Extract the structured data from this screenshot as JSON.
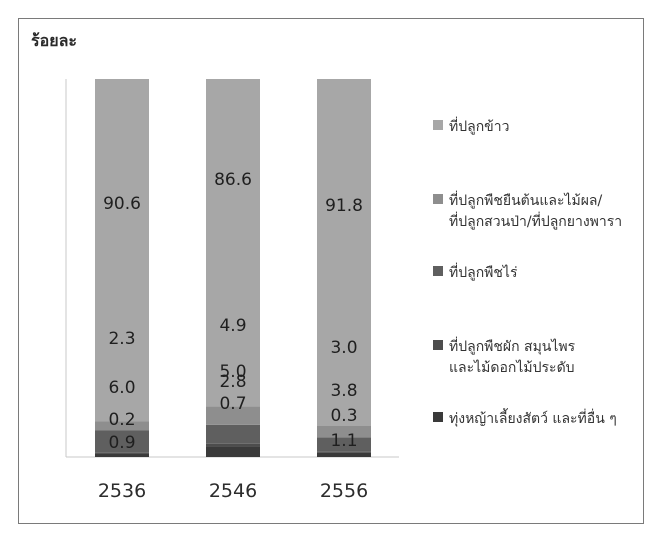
{
  "chart_data": {
    "type": "bar",
    "stacked": true,
    "ylabel": "ร้อยละ",
    "categories": [
      "2536",
      "2546",
      "2556"
    ],
    "series": [
      {
        "name": "ทุ่งหญ้าเลี้ยงสัตว์ และที่อื่น ๆ",
        "values": [
          0.9,
          2.8,
          1.1
        ],
        "labels": [
          "0.9",
          "2.8",
          "1.1"
        ],
        "color": "#3a3a3a"
      },
      {
        "name": "ที่ปลูกพืชผัก สมุนไพร\nและไม้ดอกไม้ประดับ",
        "values": [
          0.2,
          0.7,
          0.3
        ],
        "labels": [
          "0.2",
          "0.7",
          "0.3"
        ],
        "color": "#4d4d4d"
      },
      {
        "name": "ที่ปลูกพืชไร่",
        "values": [
          6.0,
          5.0,
          3.8
        ],
        "labels": [
          "6.0",
          "5.0",
          "3.8"
        ],
        "color": "#5f5f5f"
      },
      {
        "name": "ที่ปลูกพืชยืนต้นและไม้ผล/\nที่ปลูกสวนป่า/ที่ปลูกยางพารา",
        "values": [
          2.3,
          4.9,
          3.0
        ],
        "labels": [
          "2.3",
          "4.9",
          "3.0"
        ],
        "color": "#8e8e8e"
      },
      {
        "name": "ที่ปลูกข้าว",
        "values": [
          90.6,
          86.6,
          91.8
        ],
        "labels": [
          "90.6",
          "86.6",
          "91.8"
        ],
        "color": "#a7a7a7"
      }
    ],
    "ylim": [
      0,
      100
    ],
    "legend": "right",
    "grid": false
  }
}
